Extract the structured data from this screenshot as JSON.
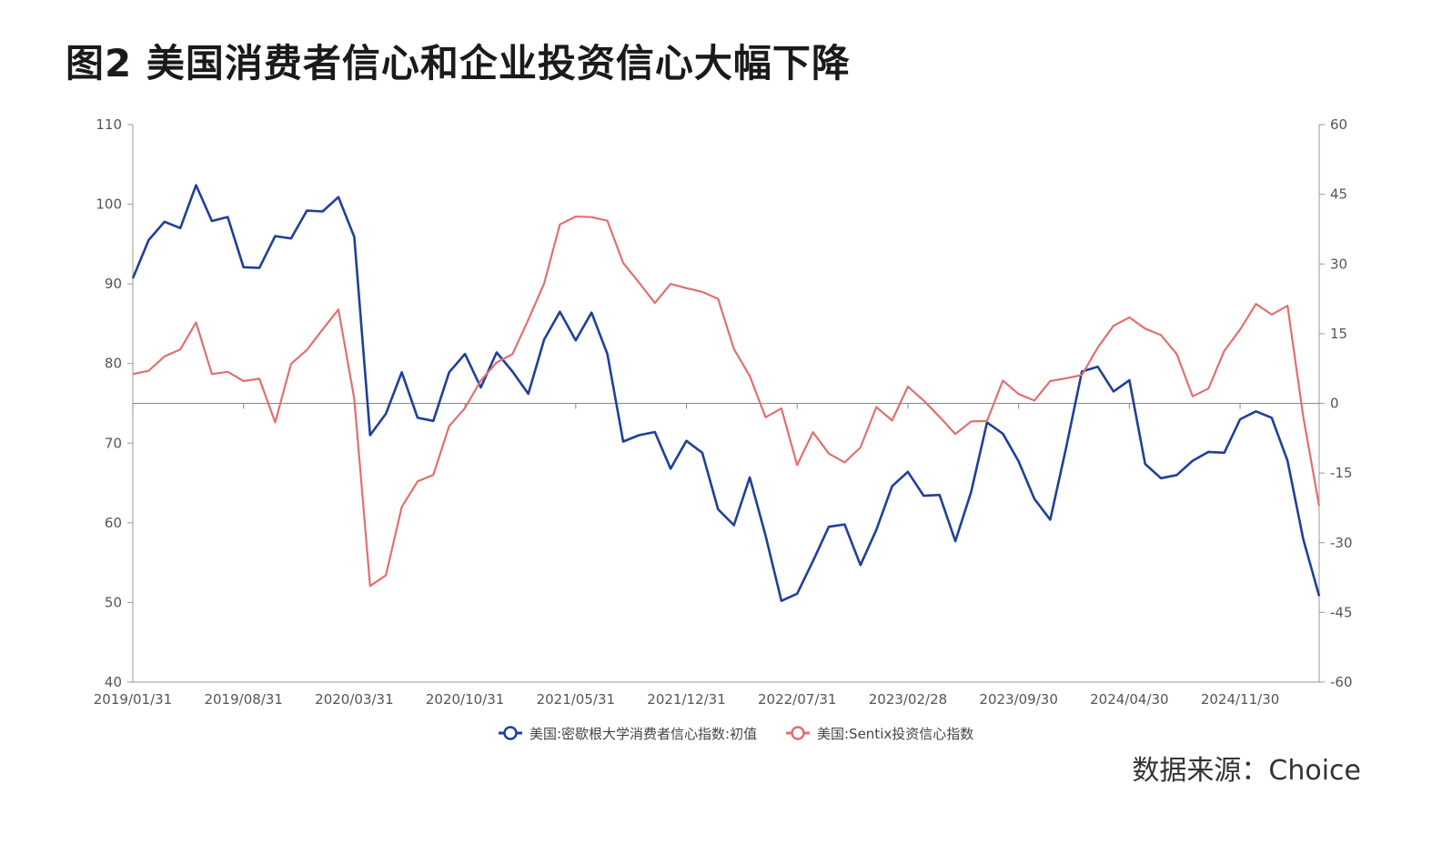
{
  "title": "图2  美国消费者信心和企业投资信心大幅下降",
  "source": "数据来源：Choice",
  "colors": {
    "consumer": "#1f3f99",
    "sentix": "#e07070",
    "axis": "#999999"
  },
  "chart_data": {
    "type": "line",
    "x_tick_labels": [
      "2019/01/31",
      "2019/08/31",
      "2020/03/31",
      "2020/10/31",
      "2021/05/31",
      "2021/12/31",
      "2022/07/31",
      "2023/02/28",
      "2023/09/30",
      "2024/04/30",
      "2024/11/30"
    ],
    "left_axis": {
      "ylim": [
        40,
        110
      ],
      "ticks": [
        "110",
        "100",
        "90",
        "80",
        "70",
        "60",
        "50",
        "40"
      ]
    },
    "right_axis": {
      "ylim": [
        -60,
        60
      ],
      "ticks": [
        "60",
        "45",
        "30",
        "15",
        "0",
        "-15",
        "-30",
        "-45",
        "-60"
      ]
    },
    "x_start": "2019/01/31",
    "series": [
      {
        "name": "美国:密歇根大学消费者信心指数:初值",
        "axis": "left",
        "values": [
          90.7,
          95.5,
          97.8,
          97.0,
          102.4,
          97.9,
          98.4,
          92.1,
          92.0,
          96.0,
          95.7,
          99.2,
          99.1,
          100.9,
          95.9,
          71.0,
          73.7,
          78.9,
          73.2,
          72.8,
          78.9,
          81.2,
          77.0,
          81.4,
          79.0,
          76.2,
          83.0,
          86.5,
          82.9,
          86.4,
          81.2,
          70.2,
          71.0,
          71.4,
          66.8,
          70.3,
          68.8,
          61.7,
          59.7,
          65.7,
          58.4,
          50.2,
          51.1,
          55.2,
          59.5,
          59.8,
          54.7,
          59.1,
          64.6,
          66.4,
          63.4,
          63.5,
          57.7,
          63.9,
          72.6,
          71.2,
          67.7,
          63.0,
          60.4,
          69.4,
          79.0,
          79.6,
          76.5,
          77.9,
          67.4,
          65.6,
          66.0,
          67.8,
          68.9,
          68.8,
          73.0,
          74.0,
          73.2,
          67.8,
          57.9,
          50.8
        ]
      },
      {
        "name": "美国:Sentix投资信心指数",
        "axis": "right",
        "values": [
          6.3,
          7.0,
          10.1,
          11.6,
          17.4,
          6.3,
          6.8,
          4.8,
          5.3,
          -4.1,
          8.5,
          11.5,
          15.9,
          20.2,
          1.0,
          -39.3,
          -37.0,
          -22.3,
          -16.8,
          -15.4,
          -4.9,
          -1.0,
          4.9,
          8.8,
          10.6,
          18.0,
          25.8,
          38.5,
          40.2,
          40.1,
          39.3,
          30.2,
          26.0,
          21.6,
          25.7,
          24.8,
          24.0,
          22.5,
          11.7,
          5.9,
          -3.0,
          -1.1,
          -13.3,
          -6.2,
          -10.8,
          -12.7,
          -9.5,
          -0.8,
          -3.7,
          3.6,
          0.6,
          -2.9,
          -6.6,
          -3.9,
          -3.8,
          4.9,
          2.0,
          0.6,
          4.8,
          5.4,
          6.1,
          12.0,
          16.7,
          18.5,
          16.1,
          14.7,
          10.6,
          1.5,
          3.2,
          11.3,
          15.9,
          21.4,
          19.1,
          21.0,
          -3.0,
          -22.1
        ]
      }
    ],
    "zero_line": 0
  }
}
